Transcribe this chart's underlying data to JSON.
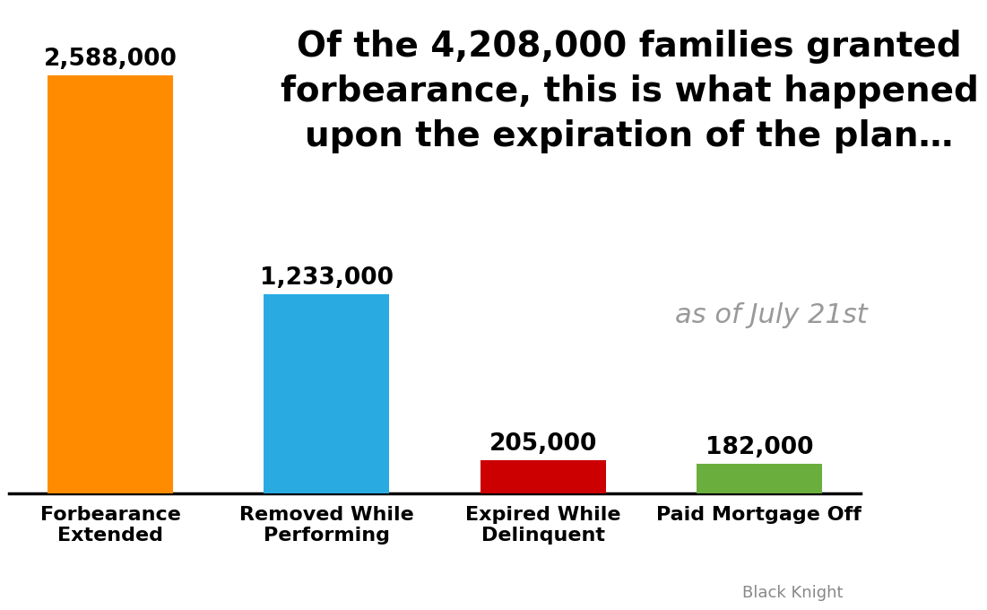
{
  "categories": [
    "Forbearance\nExtended",
    "Removed While\nPerforming",
    "Expired While\nDelinquent",
    "Paid Mortgage Off"
  ],
  "values": [
    2588000,
    1233000,
    205000,
    182000
  ],
  "labels": [
    "2,588,000",
    "1,233,000",
    "205,000",
    "182,000"
  ],
  "bar_colors": [
    "#FF8C00",
    "#29ABE2",
    "#CC0000",
    "#6AAF3D"
  ],
  "title": "Of the 4,208,000 families granted\nforbearance, this is what happened\nupon the expiration of the plan…",
  "annotation": "as of July 21st",
  "annotation_color": "#999999",
  "source": "Black Knight",
  "background_color": "#FFFFFF",
  "title_fontsize": 28,
  "label_fontsize": 19,
  "tick_fontsize": 16,
  "annotation_fontsize": 22,
  "source_fontsize": 13,
  "ylim": [
    0,
    3000000
  ]
}
